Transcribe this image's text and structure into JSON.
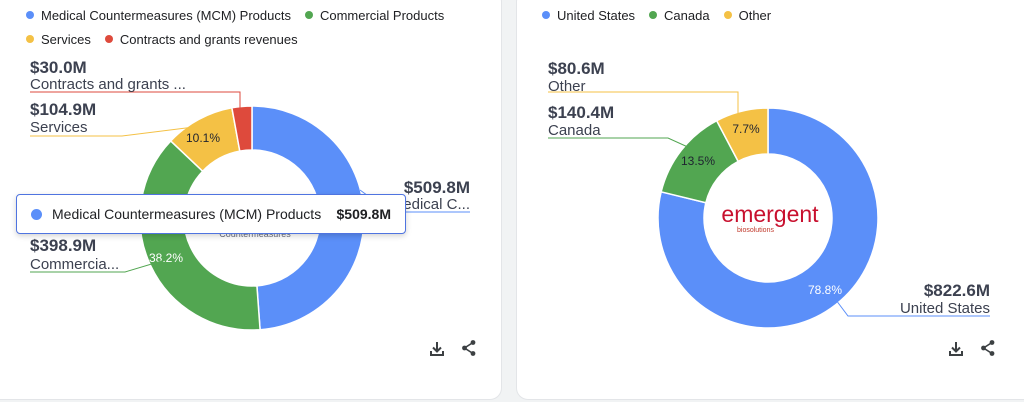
{
  "chart_data": [
    {
      "type": "pie",
      "donut": true,
      "categories": [
        "Medical Countermeasures (MCM) Products",
        "Commercial Products",
        "Services",
        "Contracts and grants revenues"
      ],
      "values": [
        509.8,
        398.9,
        104.9,
        30.0
      ],
      "value_labels": [
        "$509.8M",
        "$398.9M",
        "$104.9M",
        "$30.0M"
      ],
      "percent_labels": [
        "",
        "38.2%",
        "10.1%",
        ""
      ],
      "outer_labels": [
        "Medical C...",
        "Commercia...",
        "Services",
        "Contracts and grants ..."
      ],
      "colors": [
        "#5b8ff9",
        "#52a651",
        "#f4c145",
        "#de4a3c"
      ],
      "legend_position": "top-left",
      "tooltip": {
        "name": "Medical Countermeasures (MCM) Products",
        "value": "$509.8M"
      },
      "hidden_center_text": "Countermeasures"
    },
    {
      "type": "pie",
      "donut": true,
      "categories": [
        "United States",
        "Canada",
        "Other"
      ],
      "values": [
        822.6,
        140.4,
        80.6
      ],
      "value_labels": [
        "$822.6M",
        "$140.4M",
        "$80.6M"
      ],
      "percent_labels": [
        "78.8%",
        "13.5%",
        "7.7%"
      ],
      "outer_labels": [
        "United States",
        "Canada",
        "Other"
      ],
      "colors": [
        "#5b8ff9",
        "#52a651",
        "#f4c145"
      ],
      "legend_position": "top-left",
      "center_logo": {
        "text": "emergent",
        "subtext": "biosolutions"
      }
    }
  ],
  "toolbar": {
    "download_icon": "download-icon",
    "share_icon": "share-icon"
  }
}
